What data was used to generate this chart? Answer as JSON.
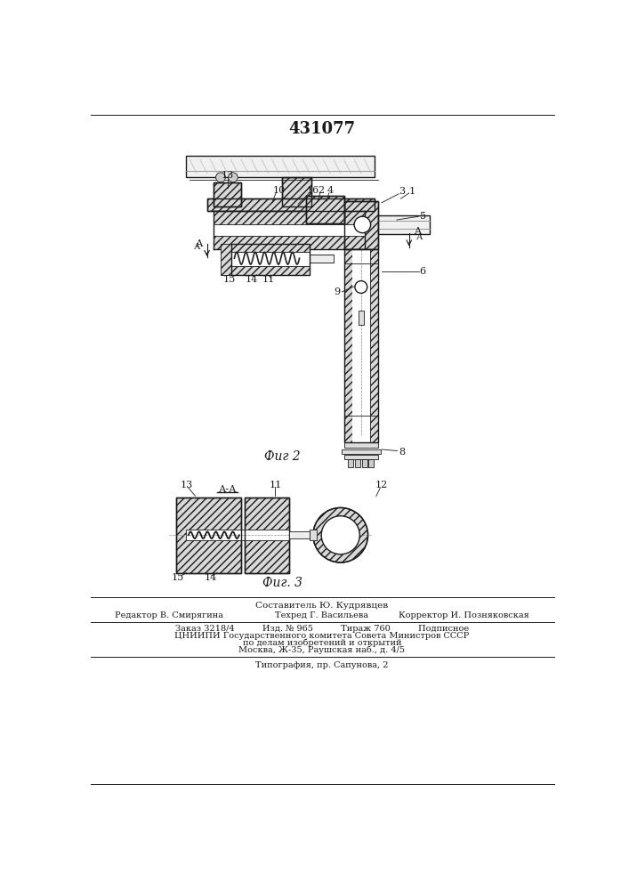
{
  "title": "431077",
  "title_fontsize": 13,
  "title_fontweight": "bold",
  "bg_color": "#ffffff",
  "line_color": "#1a1a1a",
  "fig2_label": "Фиг 2",
  "fig3_label": "Фиг. 3",
  "footer_composer": "Составитель Ю. Кудрявцев",
  "footer_editor": "Редактор В. Смирягина",
  "footer_tech": "Техред Г. Васильева",
  "footer_corrector": "Корректор И. Позняковская",
  "footer_order": "Заказ 3218/4",
  "footer_izd": "Изд. № 965",
  "footer_tirazh": "Тираж 760",
  "footer_podp": "Подписное",
  "footer_cniip1": "ЦНИИПИ Государственного комитета Совета Министров СССР",
  "footer_cniip2": "по делам изобретений и открытий",
  "footer_moscow": "Москва, Ж-35, Раушская наб., д. 4/5",
  "footer_tipog": "Типография, пр. Сапунова, 2"
}
